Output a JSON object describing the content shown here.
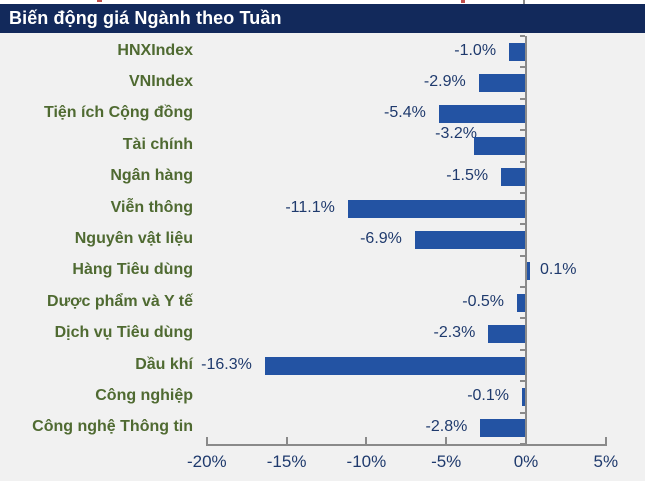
{
  "title": "Biến động giá Ngành theo Tuần",
  "colors": {
    "title_bg": "#12295B",
    "title_text": "#FFFFFF",
    "bar": "#2353A3",
    "category_label": "#4F6A31",
    "value_label": "#1F3A6D",
    "axis": "#8A8A8A",
    "background": "#F1F1F1",
    "artifact_red": "#C0504D"
  },
  "chart_data": {
    "type": "bar",
    "orientation": "horizontal",
    "title": "Biến động giá Ngành theo Tuần",
    "categories": [
      "HNXIndex",
      "VNIndex",
      "Tiện ích Cộng đồng",
      "Tài chính",
      "Ngân hàng",
      "Viễn thông",
      "Nguyên vật liệu",
      "Hàng Tiêu dùng",
      "Dược phẩm và Y tế",
      "Dịch vụ Tiêu dùng",
      "Dầu khí",
      "Công nghiệp",
      "Công nghệ Thông tin"
    ],
    "values": [
      -1.0,
      -2.9,
      -5.4,
      -3.2,
      -1.5,
      -11.1,
      -6.9,
      0.1,
      -0.5,
      -2.3,
      -16.3,
      -0.1,
      -2.8
    ],
    "data_labels": [
      "-1.0%",
      "-2.9%",
      "-5.4%",
      "-3.2%",
      "-1.5%",
      "-11.1%",
      "-6.9%",
      "0.1%",
      "-0.5%",
      "-2.3%",
      "-16.3%",
      "-0.1%",
      "-2.8%"
    ],
    "xlabel": "",
    "ylabel": "",
    "xlim": [
      -20,
      5
    ],
    "x_ticks": [
      -20,
      -15,
      -10,
      -5,
      0,
      5
    ],
    "x_tick_labels": [
      "-20%",
      "-15%",
      "-10%",
      "-5%",
      "0%",
      "5%"
    ],
    "grid": false,
    "legend": "none",
    "value_axis_crosses_at": 0
  }
}
